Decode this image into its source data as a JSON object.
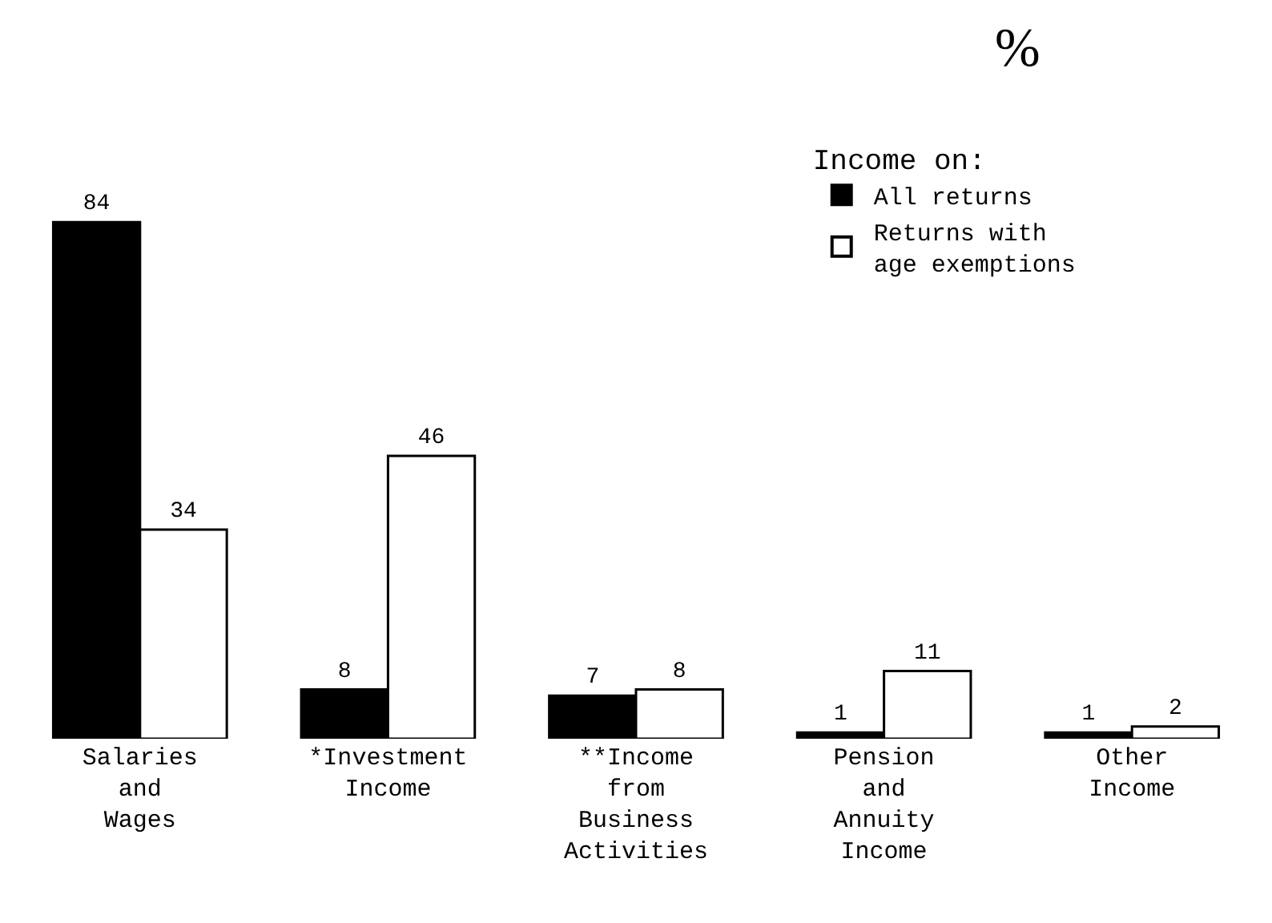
{
  "chart_data": {
    "type": "bar",
    "title": "%",
    "legend_title": "Income on:",
    "categories": [
      "Salaries\nand\nWages",
      "*Investment\nIncome",
      "**Income\nfrom\nBusiness\nActivities",
      "Pension\nand\nAnnuity\nIncome",
      "Other\nIncome"
    ],
    "series": [
      {
        "name": "All returns",
        "color": "#000000",
        "values": [
          84,
          8,
          7,
          1,
          1
        ]
      },
      {
        "name": "Returns with\nage exemptions",
        "color": "#ffffff",
        "values": [
          34,
          46,
          8,
          11,
          2
        ]
      }
    ],
    "data_labels": true,
    "legend": "top right",
    "grid": false
  }
}
